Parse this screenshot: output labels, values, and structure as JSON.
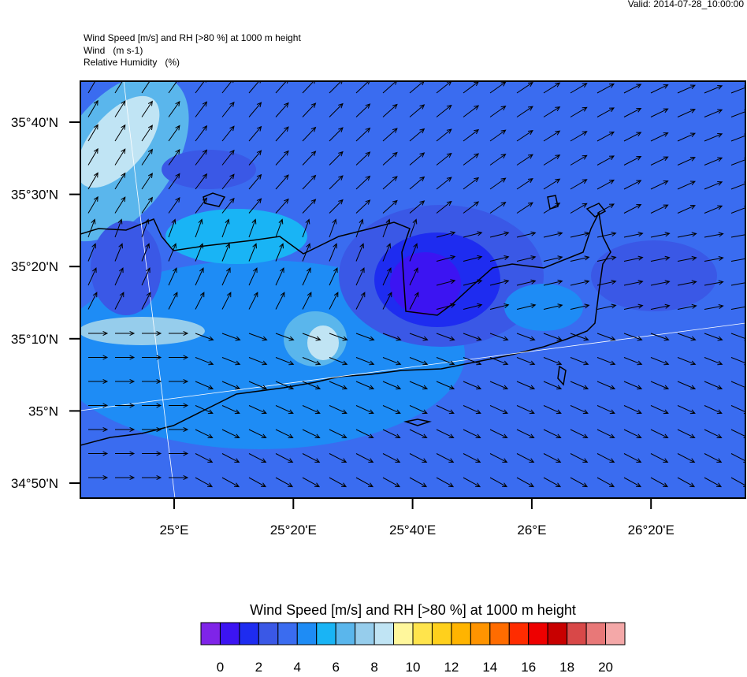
{
  "header": {
    "valid": "Valid: 2014-07-28_10:00:00",
    "title": "Wind Speed [m/s] and RH [>80 %] at 1000 m height",
    "line2": "Wind   (m s-1)",
    "line3": "Relative Humidity   (%)"
  },
  "map": {
    "lat_labels": [
      "35°40'N",
      "35°30'N",
      "35°20'N",
      "35°10'N",
      "35°N",
      "34°50'N"
    ],
    "lon_labels": [
      "25°E",
      "25°20'E",
      "25°40'E",
      "26°E",
      "26°20'E"
    ]
  },
  "colorbar": {
    "title": "Wind Speed [m/s] and RH [>80 %] at 1000 m height",
    "colors": [
      "#7f24e8",
      "#3c14f2",
      "#1e2cf0",
      "#3a58e6",
      "#3a6cf0",
      "#1e8cf5",
      "#19b4f5",
      "#5ab6ec",
      "#96cdec",
      "#c0e4f4",
      "#fff79c",
      "#ffe44c",
      "#ffd01c",
      "#ffb400",
      "#ff9400",
      "#ff6c00",
      "#ff2c00",
      "#ee0000",
      "#c80000",
      "#d84848",
      "#e87878",
      "#f4a8a8"
    ],
    "labels": [
      0,
      2,
      4,
      6,
      8,
      10,
      12,
      14,
      16,
      18,
      20
    ]
  }
}
